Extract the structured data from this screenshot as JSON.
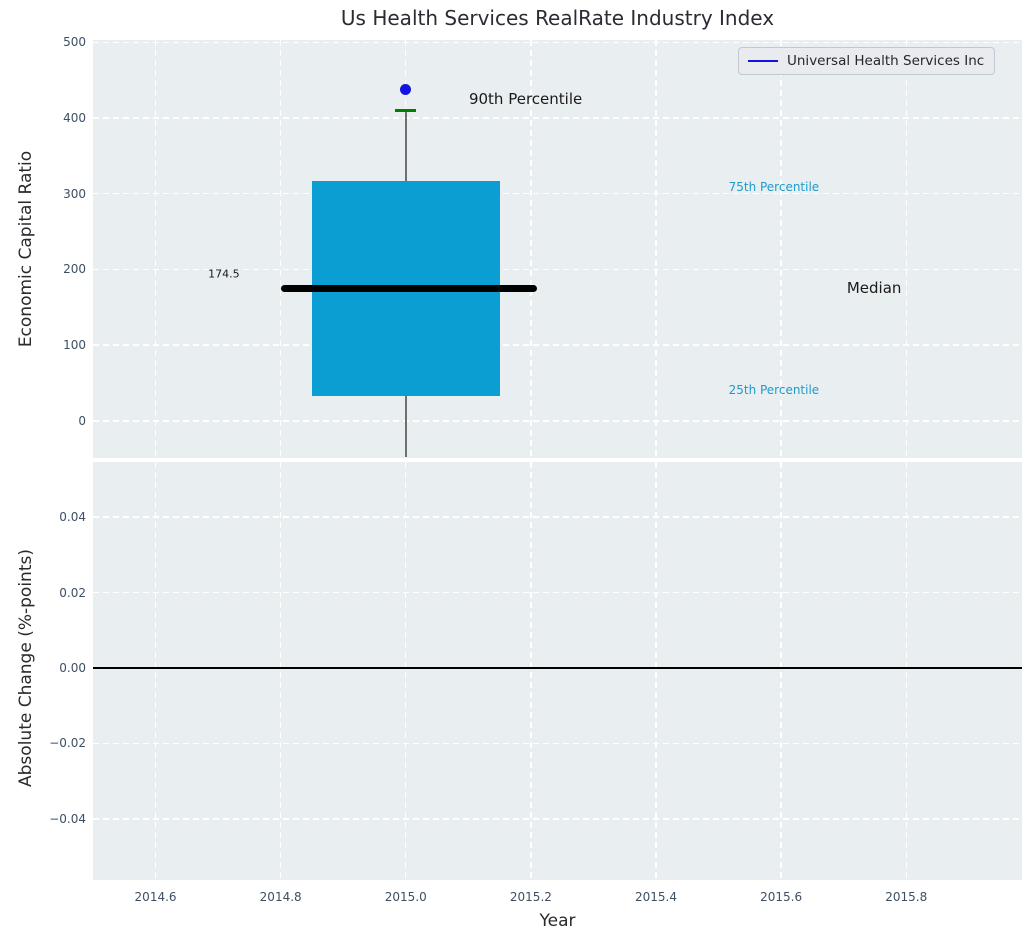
{
  "title": "Us Health Services RealRate Industry Index",
  "legend": {
    "label": "Universal Health Services Inc"
  },
  "colors": {
    "figure_bg": "#ffffff",
    "axes_bg": "#e9eef0",
    "grid": "#ffffff",
    "tick_label": "#3e4f63",
    "axis_label": "#2a2a2e",
    "title": "#2b2b33",
    "box_fill": "#0a9ed3",
    "median_line": "#000000",
    "whisker": "#6f6f6f",
    "cap_90th": "#008000",
    "company_dot": "#1414e0",
    "legend_line": "#1414e0",
    "percentile_label": "#1f9bcd",
    "annotation_black": "#1a1a1a",
    "zero_line": "#000000"
  },
  "chart_data": [
    {
      "type": "boxplot",
      "title": "Us Health Services RealRate Industry Index",
      "ylabel": "Economic Capital Ratio",
      "xlim": [
        2014.5,
        2015.985
      ],
      "ylim": [
        -49,
        503
      ],
      "grid": true,
      "legend_position": "upper right",
      "yticks": [
        {
          "v": 0,
          "label": "0"
        },
        {
          "v": 100,
          "label": "100"
        },
        {
          "v": 200,
          "label": "200"
        },
        {
          "v": 300,
          "label": "300"
        },
        {
          "v": 400,
          "label": "400"
        },
        {
          "v": 500,
          "label": "500"
        }
      ],
      "box": {
        "x_center": 2015.0,
        "x_left": 2014.85,
        "x_right": 2015.15,
        "q1": 33,
        "median": 174.5,
        "q3": 317,
        "p90": 410,
        "median_x_left": 2014.8,
        "median_x_right": 2015.21,
        "whisker_lower_clipped": true
      },
      "company_point": {
        "x": 2015.0,
        "y": 438,
        "series": "Universal Health Services Inc"
      },
      "annotations": [
        {
          "text": "90th Percentile",
          "x": 2015.101,
          "y": 425,
          "color_key": "annotation_black",
          "size": 15
        },
        {
          "text": "75th Percentile",
          "x": 2015.516,
          "y": 309,
          "color_key": "percentile_label",
          "size": 12
        },
        {
          "text": "Median",
          "x": 2015.705,
          "y": 175,
          "color_key": "annotation_black",
          "size": 15
        },
        {
          "text": "25th Percentile",
          "x": 2015.516,
          "y": 41,
          "color_key": "percentile_label",
          "size": 12
        },
        {
          "text": "174.5",
          "x": 2014.684,
          "y": 194,
          "color_key": "annotation_black",
          "size": 11
        }
      ]
    },
    {
      "type": "line",
      "ylabel": "Absolute Change (%-points)",
      "xlabel": "Year",
      "xlim": [
        2014.5,
        2015.985
      ],
      "ylim": [
        -0.0562,
        0.0546
      ],
      "grid": true,
      "zero_line": 0.0,
      "yticks": [
        {
          "v": -0.04,
          "label": "−0.04"
        },
        {
          "v": -0.02,
          "label": "−0.02"
        },
        {
          "v": 0.0,
          "label": "0.00"
        },
        {
          "v": 0.02,
          "label": "0.02"
        },
        {
          "v": 0.04,
          "label": "0.04"
        }
      ],
      "xticks": [
        {
          "v": 2014.6,
          "label": "2014.6"
        },
        {
          "v": 2014.8,
          "label": "2014.8"
        },
        {
          "v": 2015.0,
          "label": "2015.0"
        },
        {
          "v": 2015.2,
          "label": "2015.2"
        },
        {
          "v": 2015.4,
          "label": "2015.4"
        },
        {
          "v": 2015.6,
          "label": "2015.6"
        },
        {
          "v": 2015.8,
          "label": "2015.8"
        }
      ],
      "series": []
    }
  ]
}
